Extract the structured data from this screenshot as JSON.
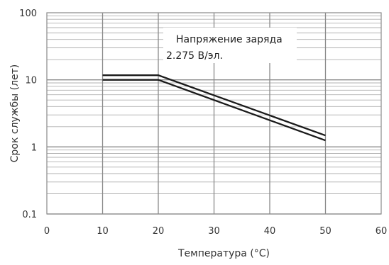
{
  "chart_data": {
    "type": "line",
    "title": "",
    "xlabel": "Температура (°C)",
    "ylabel": "Срок службы (лет)",
    "xlim": [
      0,
      60
    ],
    "ylim": [
      0.1,
      100
    ],
    "yscale": "log",
    "grid": true,
    "x_ticks": [
      "0",
      "10",
      "20",
      "30",
      "40",
      "50",
      "60"
    ],
    "y_ticks": [
      "0.1",
      "1",
      "10",
      "100"
    ],
    "series": [
      {
        "x": [
          10,
          20,
          50
        ],
        "y": [
          11.7,
          11.7,
          1.48
        ],
        "color": "#1a1a1a"
      },
      {
        "x": [
          10,
          20,
          50
        ],
        "y": [
          10.0,
          10.0,
          1.25
        ],
        "color": "#1a1a1a"
      }
    ],
    "annotation": {
      "lines": [
        "Напряжение заряда",
        "2.275 В/эл."
      ],
      "placement": "top-center"
    }
  }
}
